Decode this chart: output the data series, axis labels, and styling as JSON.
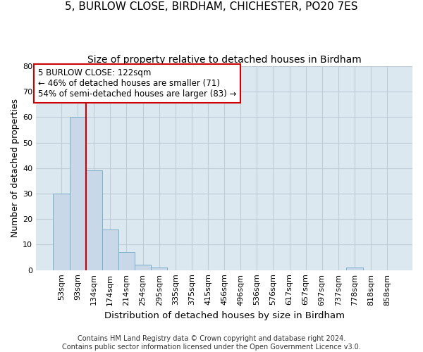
{
  "title_line1": "5, BURLOW CLOSE, BIRDHAM, CHICHESTER, PO20 7ES",
  "title_line2": "Size of property relative to detached houses in Birdham",
  "xlabel": "Distribution of detached houses by size in Birdham",
  "ylabel": "Number of detached properties",
  "bar_labels": [
    "53sqm",
    "93sqm",
    "134sqm",
    "174sqm",
    "214sqm",
    "254sqm",
    "295sqm",
    "335sqm",
    "375sqm",
    "415sqm",
    "456sqm",
    "496sqm",
    "536sqm",
    "576sqm",
    "617sqm",
    "657sqm",
    "697sqm",
    "737sqm",
    "778sqm",
    "818sqm",
    "858sqm"
  ],
  "bar_values": [
    30,
    60,
    39,
    16,
    7,
    2,
    1,
    0,
    0,
    0,
    0,
    0,
    0,
    0,
    0,
    0,
    0,
    0,
    1,
    0,
    0
  ],
  "bar_color": "#c8d8e8",
  "bar_edge_color": "#7ab0cc",
  "grid_color": "#c0ccd8",
  "background_color": "#dce8f0",
  "annotation_box_text": "5 BURLOW CLOSE: 122sqm\n← 46% of detached houses are smaller (71)\n54% of semi-detached houses are larger (83) →",
  "annotation_box_color": "#cc0000",
  "vertical_line_color": "#cc0000",
  "vertical_line_x": 1.5,
  "ylim": [
    0,
    80
  ],
  "yticks": [
    0,
    10,
    20,
    30,
    40,
    50,
    60,
    70,
    80
  ],
  "footnote": "Contains HM Land Registry data © Crown copyright and database right 2024.\nContains public sector information licensed under the Open Government Licence v3.0.",
  "title_fontsize": 11,
  "subtitle_fontsize": 10,
  "xlabel_fontsize": 9.5,
  "ylabel_fontsize": 9,
  "tick_fontsize": 8,
  "footnote_fontsize": 7,
  "annotation_fontsize": 8.5
}
